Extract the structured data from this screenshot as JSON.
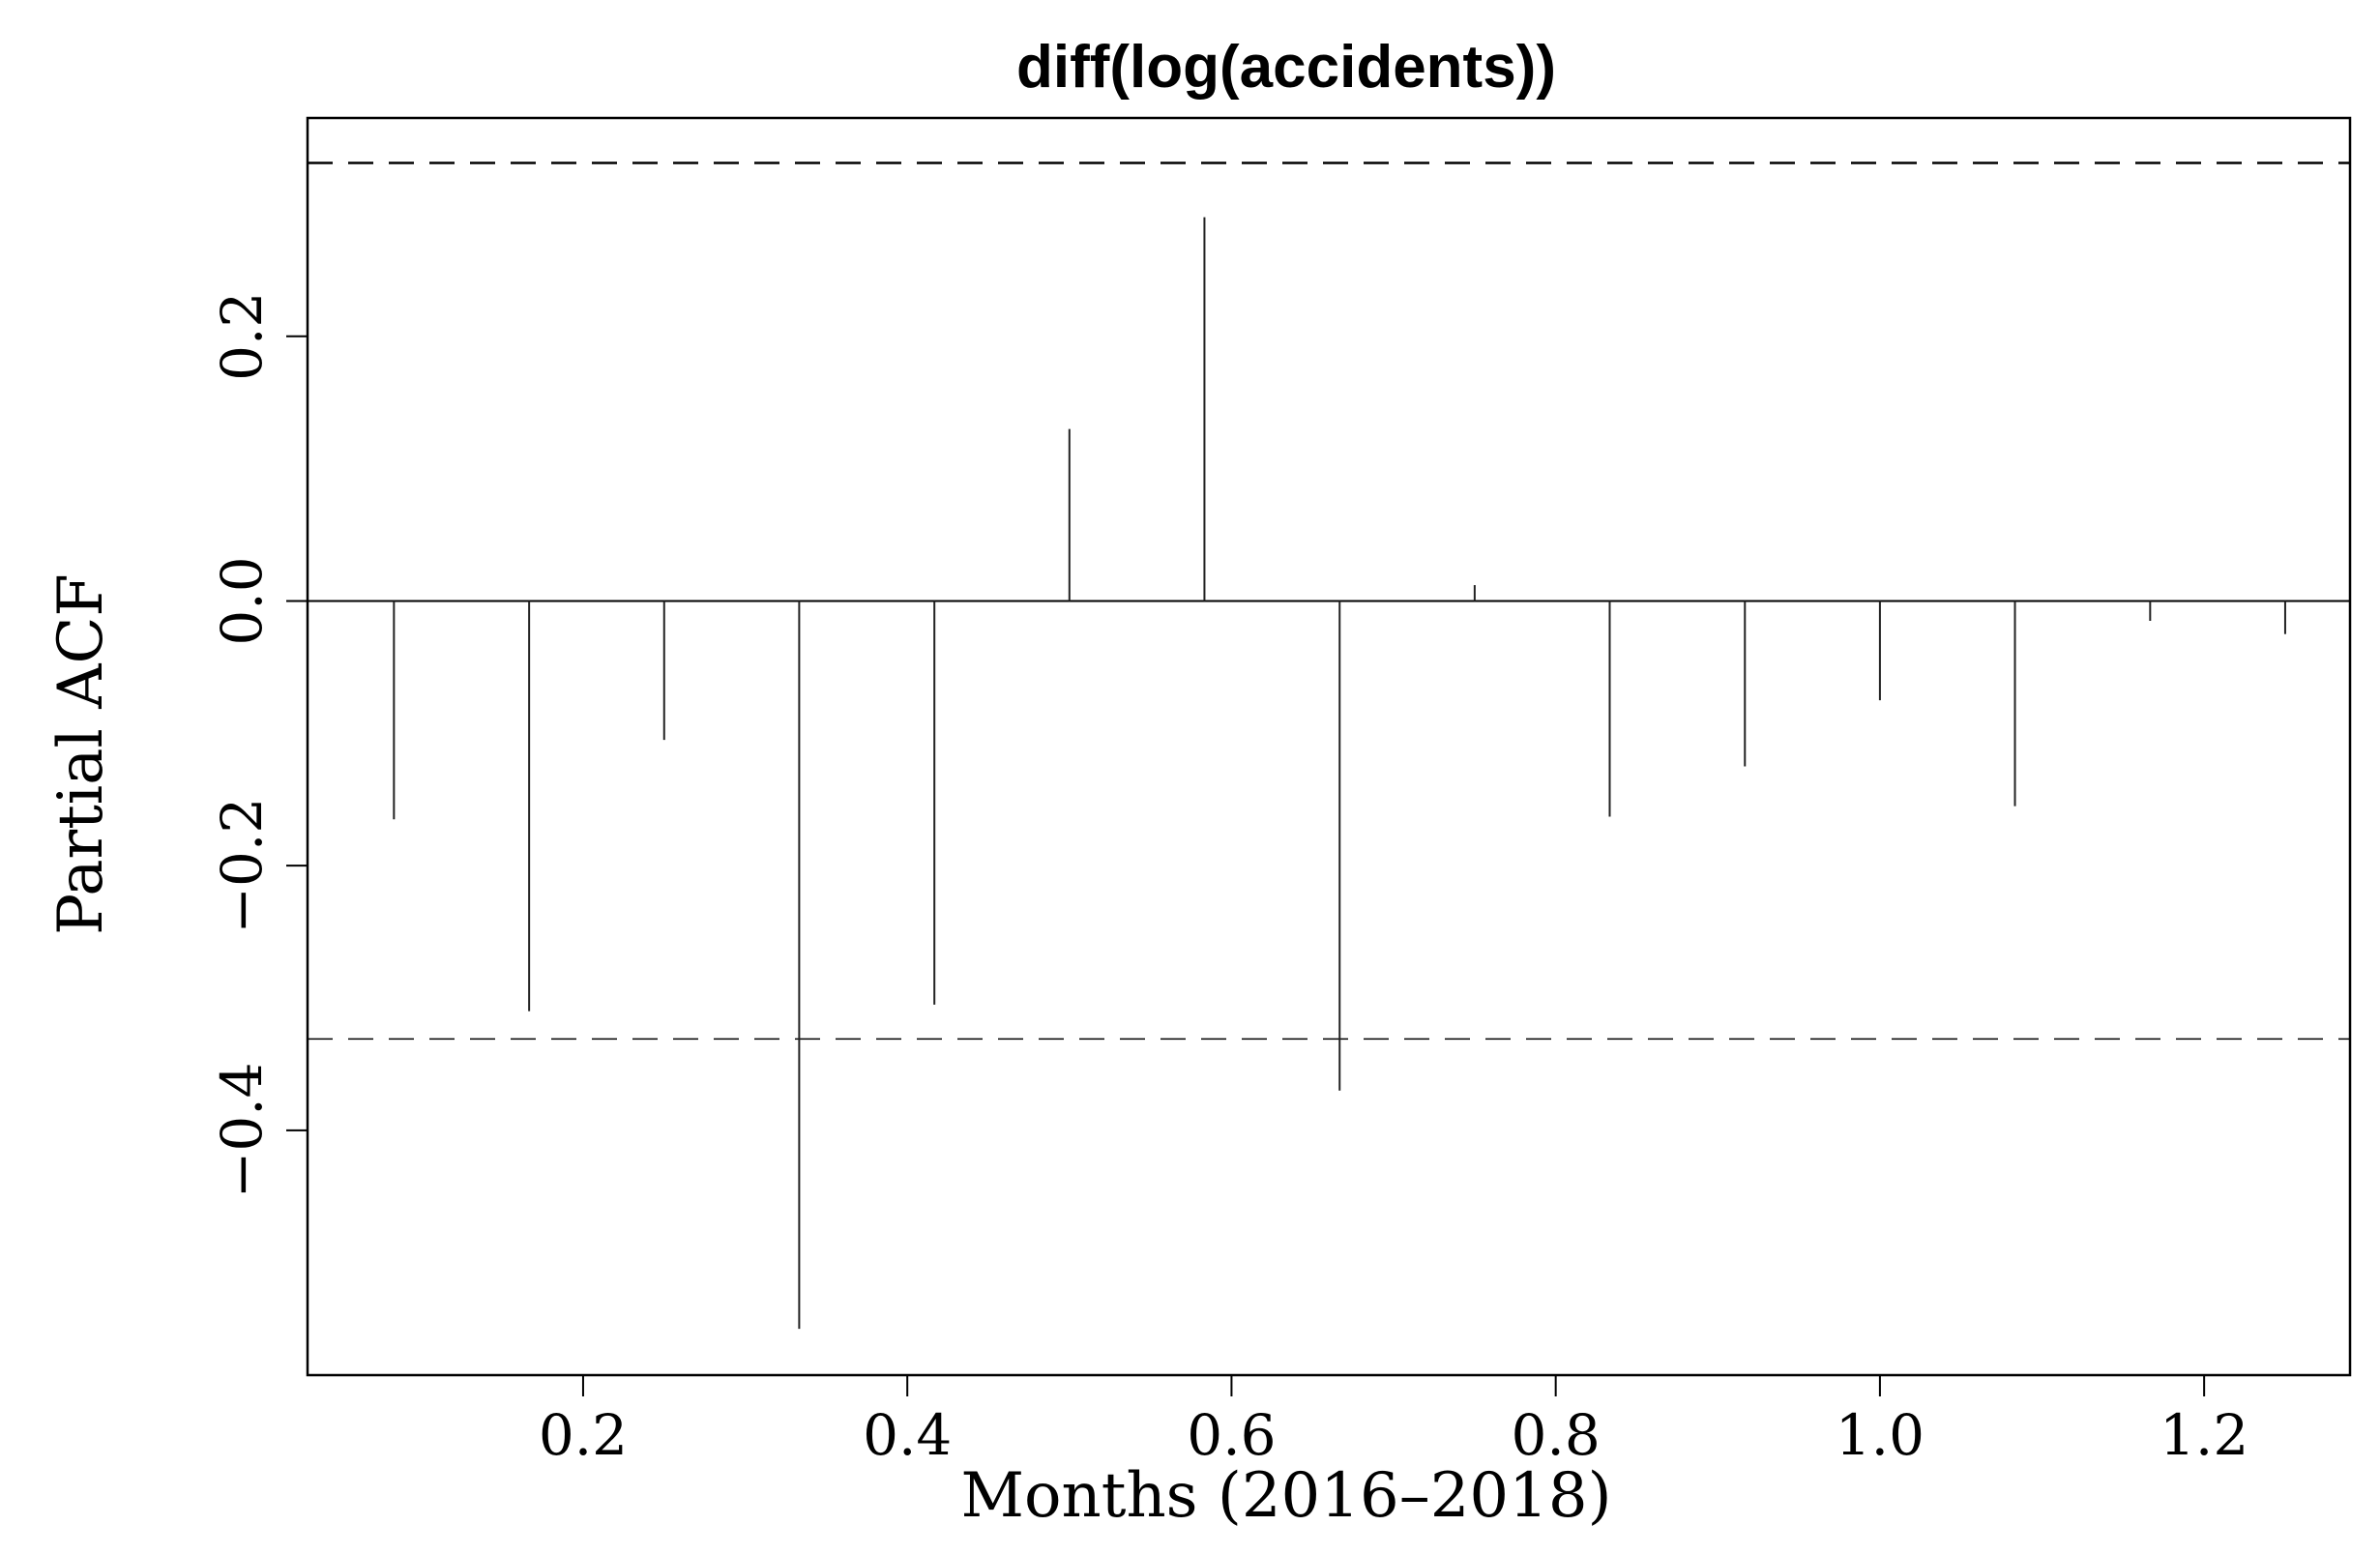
{
  "chart_data": {
    "type": "bar",
    "title": "diff(log(accidents))",
    "xlabel": "Months (2016–2018)",
    "ylabel": "Partial ACF",
    "xlim": [
      0.03,
      1.29
    ],
    "ylim": [
      -0.585,
      0.365
    ],
    "x_ticks": [
      {
        "value": 0.2,
        "label": "0.2"
      },
      {
        "value": 0.4,
        "label": "0.4"
      },
      {
        "value": 0.6,
        "label": "0.6"
      },
      {
        "value": 0.8,
        "label": "0.8"
      },
      {
        "value": 1.0,
        "label": "1.0"
      },
      {
        "value": 1.2,
        "label": "1.2"
      }
    ],
    "y_ticks": [
      {
        "value": -0.4,
        "label": "−0.4"
      },
      {
        "value": -0.2,
        "label": "−0.2"
      },
      {
        "value": 0.0,
        "label": "0.0"
      },
      {
        "value": 0.2,
        "label": "0.2"
      }
    ],
    "confidence_bounds": [
      0.331,
      -0.331
    ],
    "grid": false,
    "series": [
      {
        "x": [
          0.0833,
          0.1667,
          0.25,
          0.3333,
          0.4167,
          0.5,
          0.5833,
          0.6667,
          0.75,
          0.8333,
          0.9167,
          1.0,
          1.0833,
          1.1667,
          1.25
        ],
        "values": [
          -0.165,
          -0.31,
          -0.105,
          -0.55,
          -0.305,
          0.13,
          0.29,
          -0.37,
          0.012,
          -0.163,
          -0.125,
          -0.075,
          -0.155,
          -0.015,
          -0.025
        ]
      }
    ]
  }
}
